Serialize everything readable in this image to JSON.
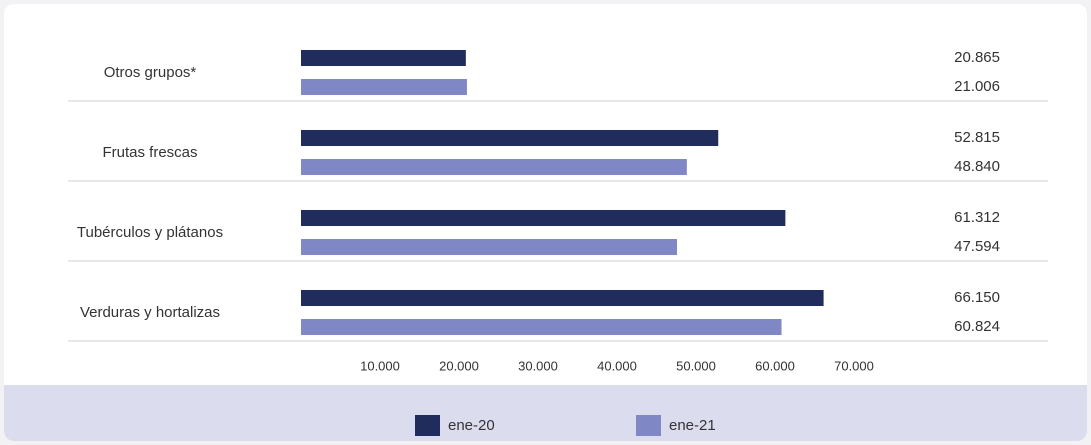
{
  "chart_data": {
    "type": "bar",
    "orientation": "horizontal",
    "categories": [
      "Otros grupos*",
      "Frutas frescas",
      "Tubérculos y plátanos",
      "Verduras y hortalizas"
    ],
    "series": [
      {
        "name": "ene-20",
        "color": "#1f2c5c",
        "values": [
          20865,
          52815,
          61312,
          66150
        ],
        "value_labels": [
          "20.865",
          "52.815",
          "61.312",
          "66.150"
        ]
      },
      {
        "name": "ene-21",
        "color": "#7f87c5",
        "values": [
          21006,
          48840,
          47594,
          60824
        ],
        "value_labels": [
          "21.006",
          "48.840",
          "47.594",
          "60.824"
        ]
      }
    ],
    "xlim": [
      0,
      80000
    ],
    "xticks": [
      {
        "value": 10000,
        "label": "10.000"
      },
      {
        "value": 20000,
        "label": "20.000"
      },
      {
        "value": 30000,
        "label": "30.000"
      },
      {
        "value": 40000,
        "label": "40.000"
      },
      {
        "value": 50000,
        "label": "50.000"
      },
      {
        "value": 60000,
        "label": "60.000"
      },
      {
        "value": 70000,
        "label": "70.000"
      }
    ]
  }
}
